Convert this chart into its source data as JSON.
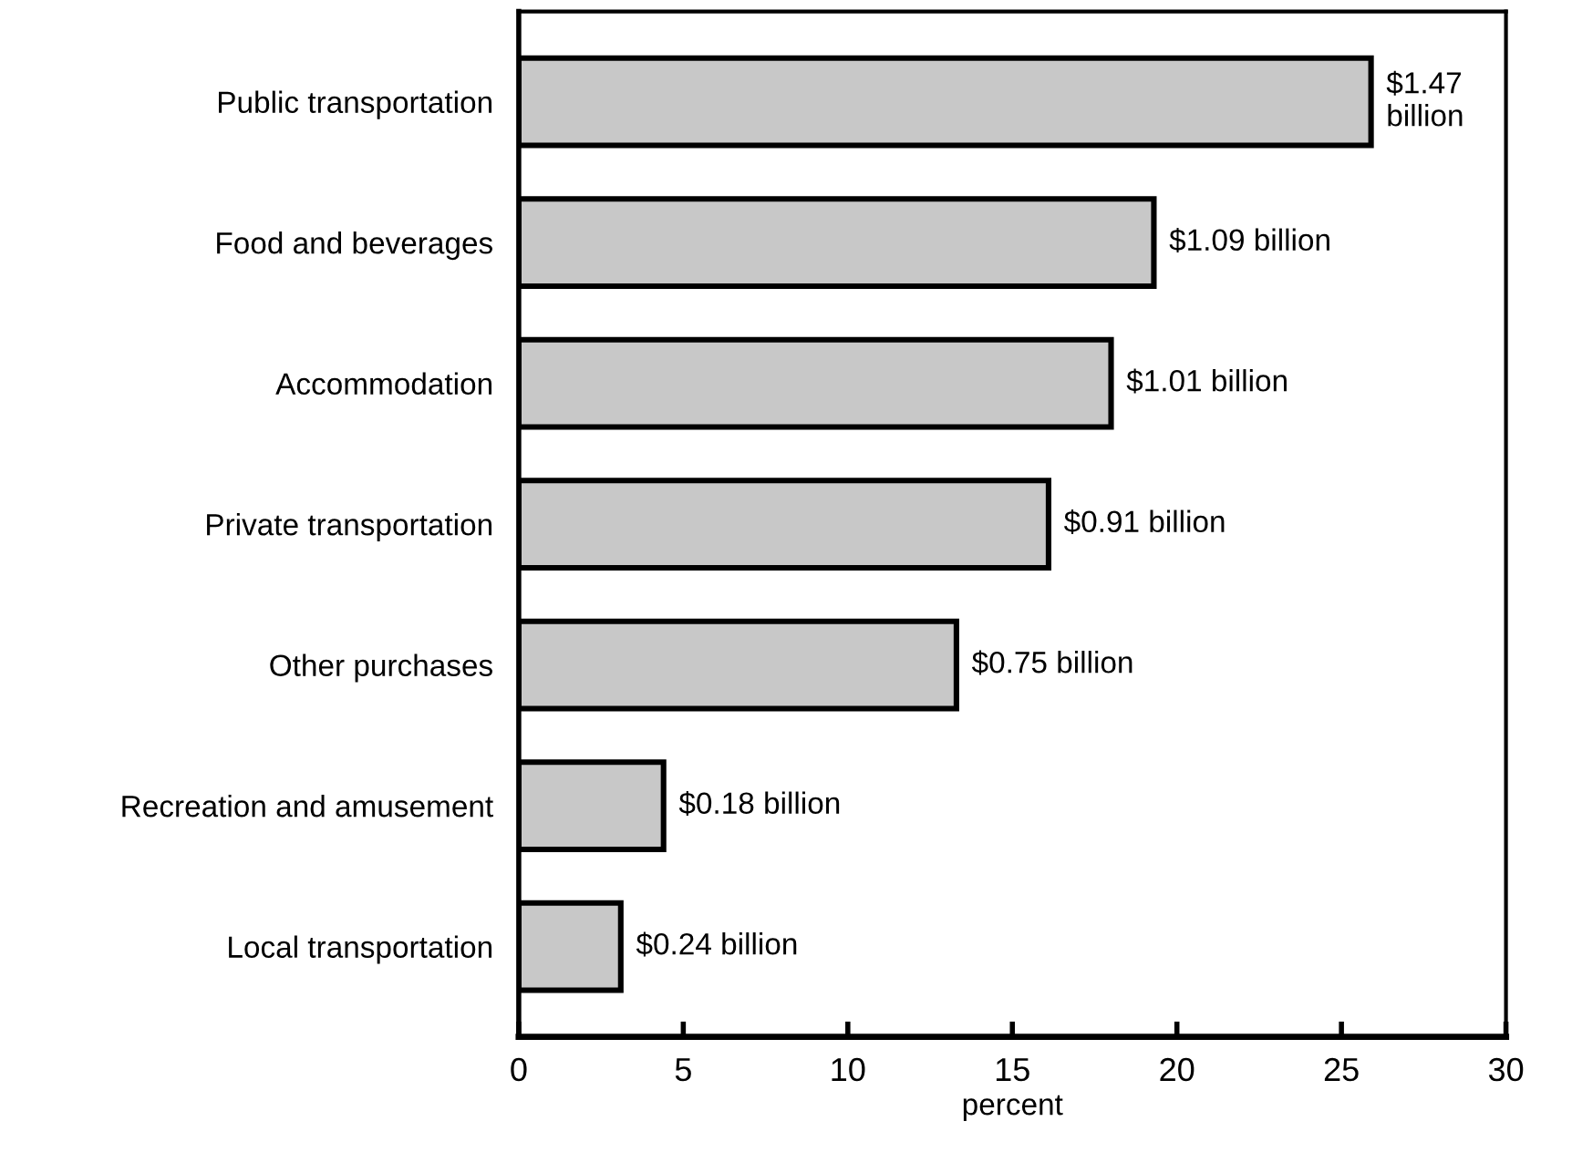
{
  "chart_data": {
    "type": "bar",
    "orientation": "horizontal",
    "xlabel": "percent",
    "categories": [
      "Public transportation",
      "Food and beverages",
      "Accommodation",
      "Private transportation",
      "Other purchases",
      "Recreation and amusement",
      "Local transportation"
    ],
    "values": [
      25.9,
      19.3,
      18.0,
      16.1,
      13.3,
      4.4,
      3.1
    ],
    "annotations": [
      {
        "text": "$1.47\nbillion",
        "x": 25.9,
        "y": "Public transportation"
      },
      {
        "text": "$1.09 billion",
        "x": 19.3,
        "y": "Food and beverages"
      },
      {
        "text": "$1.01 billion",
        "x": 18.0,
        "y": "Accommodation"
      },
      {
        "text": "$0.91 billion",
        "x": 16.1,
        "y": "Private transportation"
      },
      {
        "text": "$0.75 billion",
        "x": 13.3,
        "y": "Other purchases"
      },
      {
        "text": "$0.18 billion",
        "x": 4.4,
        "y": "Recreation and amusement"
      },
      {
        "text": "$0.24 billion",
        "x": 3.1,
        "y": "Local transportation"
      }
    ],
    "color": "#c8c8c8",
    "xlim": [
      0,
      30
    ],
    "xticks": [
      0,
      5,
      10,
      15,
      20,
      25,
      30
    ],
    "grid": false,
    "legend": false
  }
}
